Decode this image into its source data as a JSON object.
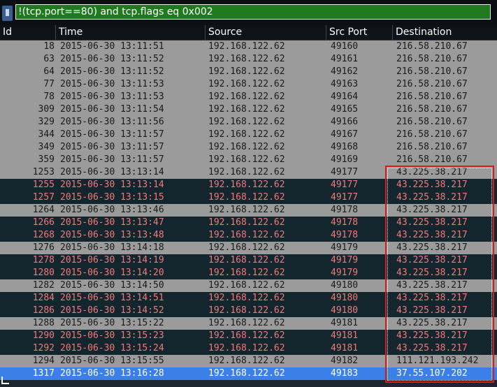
{
  "filter": {
    "icon": "bookmark-icon",
    "expression": "!(tcp.port==80) and tcp.flags eq 0x002",
    "valid_color": "#1f7a1f"
  },
  "columns": [
    "Id",
    "Time",
    "Source",
    "Src Port",
    "Destination"
  ],
  "colors": {
    "normal_row_bg": "#9b9b9b",
    "dark_row_bg": "#13262d",
    "dark_row_text": "#f07a7a",
    "selected_row_bg": "#3a80e8",
    "highlight_border": "#d21e1e"
  },
  "rows": [
    {
      "id": "18",
      "time": "2015-06-30 13:11:51",
      "source": "192.168.122.62",
      "port": "49160",
      "dest": "216.58.210.67",
      "style": "gray"
    },
    {
      "id": "63",
      "time": "2015-06-30 13:11:52",
      "source": "192.168.122.62",
      "port": "49161",
      "dest": "216.58.210.67",
      "style": "gray"
    },
    {
      "id": "64",
      "time": "2015-06-30 13:11:52",
      "source": "192.168.122.62",
      "port": "49162",
      "dest": "216.58.210.67",
      "style": "gray"
    },
    {
      "id": "77",
      "time": "2015-06-30 13:11:53",
      "source": "192.168.122.62",
      "port": "49163",
      "dest": "216.58.210.67",
      "style": "gray"
    },
    {
      "id": "78",
      "time": "2015-06-30 13:11:53",
      "source": "192.168.122.62",
      "port": "49164",
      "dest": "216.58.210.67",
      "style": "gray"
    },
    {
      "id": "309",
      "time": "2015-06-30 13:11:54",
      "source": "192.168.122.62",
      "port": "49165",
      "dest": "216.58.210.67",
      "style": "gray"
    },
    {
      "id": "329",
      "time": "2015-06-30 13:11:56",
      "source": "192.168.122.62",
      "port": "49166",
      "dest": "216.58.210.67",
      "style": "gray"
    },
    {
      "id": "344",
      "time": "2015-06-30 13:11:57",
      "source": "192.168.122.62",
      "port": "49167",
      "dest": "216.58.210.67",
      "style": "gray"
    },
    {
      "id": "349",
      "time": "2015-06-30 13:11:57",
      "source": "192.168.122.62",
      "port": "49168",
      "dest": "216.58.210.67",
      "style": "gray"
    },
    {
      "id": "359",
      "time": "2015-06-30 13:11:57",
      "source": "192.168.122.62",
      "port": "49169",
      "dest": "216.58.210.67",
      "style": "gray"
    },
    {
      "id": "1253",
      "time": "2015-06-30 13:13:14",
      "source": "192.168.122.62",
      "port": "49177",
      "dest": "43.225.38.217",
      "style": "gray"
    },
    {
      "id": "1255",
      "time": "2015-06-30 13:13:14",
      "source": "192.168.122.62",
      "port": "49177",
      "dest": "43.225.38.217",
      "style": "dark"
    },
    {
      "id": "1257",
      "time": "2015-06-30 13:13:15",
      "source": "192.168.122.62",
      "port": "49177",
      "dest": "43.225.38.217",
      "style": "dark"
    },
    {
      "id": "1264",
      "time": "2015-06-30 13:13:46",
      "source": "192.168.122.62",
      "port": "49178",
      "dest": "43.225.38.217",
      "style": "gray"
    },
    {
      "id": "1266",
      "time": "2015-06-30 13:13:47",
      "source": "192.168.122.62",
      "port": "49178",
      "dest": "43.225.38.217",
      "style": "dark"
    },
    {
      "id": "1268",
      "time": "2015-06-30 13:13:48",
      "source": "192.168.122.62",
      "port": "49178",
      "dest": "43.225.38.217",
      "style": "dark"
    },
    {
      "id": "1276",
      "time": "2015-06-30 13:14:18",
      "source": "192.168.122.62",
      "port": "49179",
      "dest": "43.225.38.217",
      "style": "gray"
    },
    {
      "id": "1278",
      "time": "2015-06-30 13:14:19",
      "source": "192.168.122.62",
      "port": "49179",
      "dest": "43.225.38.217",
      "style": "dark"
    },
    {
      "id": "1280",
      "time": "2015-06-30 13:14:20",
      "source": "192.168.122.62",
      "port": "49179",
      "dest": "43.225.38.217",
      "style": "dark"
    },
    {
      "id": "1282",
      "time": "2015-06-30 13:14:50",
      "source": "192.168.122.62",
      "port": "49180",
      "dest": "43.225.38.217",
      "style": "gray"
    },
    {
      "id": "1284",
      "time": "2015-06-30 13:14:51",
      "source": "192.168.122.62",
      "port": "49180",
      "dest": "43.225.38.217",
      "style": "dark"
    },
    {
      "id": "1286",
      "time": "2015-06-30 13:14:52",
      "source": "192.168.122.62",
      "port": "49180",
      "dest": "43.225.38.217",
      "style": "dark"
    },
    {
      "id": "1288",
      "time": "2015-06-30 13:15:22",
      "source": "192.168.122.62",
      "port": "49181",
      "dest": "43.225.38.217",
      "style": "gray"
    },
    {
      "id": "1290",
      "time": "2015-06-30 13:15:23",
      "source": "192.168.122.62",
      "port": "49181",
      "dest": "43.225.38.217",
      "style": "dark"
    },
    {
      "id": "1292",
      "time": "2015-06-30 13:15:24",
      "source": "192.168.122.62",
      "port": "49181",
      "dest": "43.225.38.217",
      "style": "dark"
    },
    {
      "id": "1294",
      "time": "2015-06-30 13:15:55",
      "source": "192.168.122.62",
      "port": "49182",
      "dest": "111.121.193.242",
      "style": "gray"
    },
    {
      "id": "1317",
      "time": "2015-06-30 13:16:28",
      "source": "192.168.122.62",
      "port": "49183",
      "dest": "37.55.107.202",
      "style": "sel"
    }
  ]
}
